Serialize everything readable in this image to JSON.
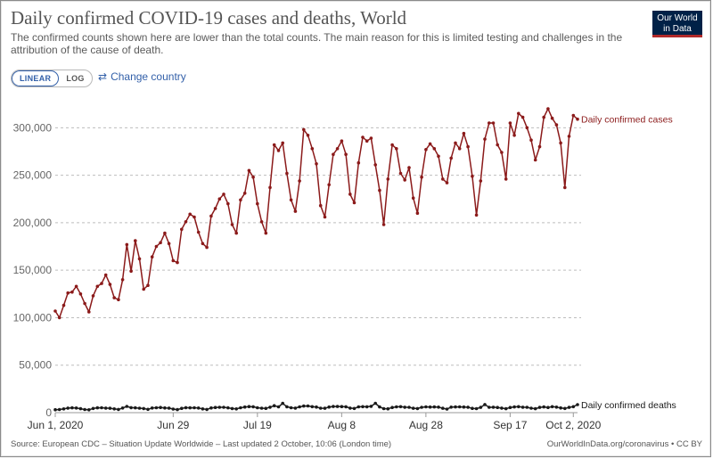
{
  "header": {
    "title": "Daily confirmed COVID-19 cases and deaths, World",
    "subtitle": "The confirmed counts shown here are lower than the total counts. The main reason for this is limited testing and challenges in the attribution of the cause of death.",
    "logo_line1": "Our World",
    "logo_line2": "in Data"
  },
  "controls": {
    "linear_label": "LINEAR",
    "log_label": "LOG",
    "active_scale": "linear",
    "change_country_icon": "swap-arrows-icon",
    "change_country_label": "Change country"
  },
  "footer": {
    "source": "Source: European CDC – Situation Update Worldwide – Last updated 2 October, 10:06 (London time)",
    "credit": "OurWorldInData.org/coronavirus • CC BY"
  },
  "colors": {
    "cases": "#8b1a1a",
    "deaths": "#1a1a1a",
    "grid": "#bdbdbd",
    "logo_bg": "#002147",
    "accent": "#3360a9"
  },
  "chart_data": {
    "type": "line",
    "title": "Daily confirmed COVID-19 cases and deaths, World",
    "x_start_date": "2020-06-01",
    "x_end_date": "2020-10-02",
    "x_tick_labels": [
      "Jun 1, 2020",
      "Jun 29",
      "Jul 19",
      "Aug 8",
      "Aug 28",
      "Sep 17",
      "Oct 2, 2020"
    ],
    "x_tick_days": [
      0,
      28,
      48,
      68,
      88,
      108,
      123
    ],
    "y_ticks": [
      0,
      50000,
      100000,
      150000,
      200000,
      250000,
      300000
    ],
    "y_tick_labels": [
      "0",
      "50,000",
      "100,000",
      "150,000",
      "200,000",
      "250,000",
      "300,000"
    ],
    "ylim": [
      0,
      320000
    ],
    "grid": "horizontal-dashed",
    "legend_placement": "right-end-labels",
    "series": [
      {
        "name": "Daily confirmed cases",
        "color": "#8b1a1a",
        "values": [
          107000,
          100000,
          113000,
          126000,
          127000,
          133000,
          125000,
          115000,
          106000,
          123000,
          133000,
          136000,
          145000,
          135000,
          121000,
          119000,
          140000,
          177000,
          149000,
          181000,
          162000,
          130000,
          134000,
          164000,
          175000,
          179000,
          189000,
          178000,
          160000,
          158000,
          193000,
          201000,
          209000,
          206000,
          190000,
          178000,
          174000,
          207000,
          215000,
          225000,
          230000,
          220000,
          198000,
          189000,
          224000,
          231000,
          255000,
          248000,
          220000,
          201000,
          189000,
          237000,
          282000,
          276000,
          284000,
          252000,
          224000,
          212000,
          244000,
          298000,
          292000,
          278000,
          262000,
          218000,
          206000,
          240000,
          272000,
          278000,
          286000,
          272000,
          230000,
          221000,
          263000,
          290000,
          286000,
          289000,
          261000,
          234000,
          198000,
          246000,
          282000,
          278000,
          252000,
          245000,
          258000,
          226000,
          210000,
          248000,
          277000,
          283000,
          278000,
          270000,
          246000,
          242000,
          268000,
          284000,
          278000,
          294000,
          280000,
          249000,
          208000,
          244000,
          288000,
          305000,
          305000,
          282000,
          274000,
          246000,
          305000,
          292000,
          315000,
          311000,
          300000,
          287000,
          266000,
          280000,
          311000,
          320000,
          310000,
          303000,
          284000,
          237000,
          291000,
          313000,
          309000
        ],
        "end_label": "Daily confirmed cases"
      },
      {
        "name": "Daily confirmed deaths",
        "color": "#1a1a1a",
        "values": [
          3100,
          3300,
          3900,
          4800,
          5100,
          4900,
          4100,
          3300,
          3000,
          4400,
          5100,
          5200,
          4800,
          4600,
          3900,
          3400,
          4900,
          6600,
          5300,
          5100,
          4700,
          4300,
          3500,
          4900,
          5200,
          5400,
          5000,
          4800,
          3800,
          3200,
          4500,
          5300,
          5100,
          5200,
          4900,
          3900,
          3400,
          5000,
          5400,
          5600,
          5600,
          5100,
          4300,
          3900,
          5200,
          5900,
          6400,
          6200,
          5200,
          4700,
          4500,
          5700,
          7300,
          6100,
          9800,
          6200,
          5200,
          4800,
          6100,
          6900,
          7000,
          6300,
          5900,
          4700,
          4600,
          5900,
          6500,
          6500,
          6400,
          6200,
          4800,
          4400,
          6100,
          6300,
          6200,
          6700,
          9900,
          6000,
          4200,
          4000,
          5400,
          6100,
          6300,
          5700,
          5600,
          4600,
          4300,
          5600,
          6100,
          5900,
          6000,
          5800,
          4600,
          3800,
          5800,
          6000,
          6100,
          5900,
          5700,
          4500,
          4200,
          5500,
          8500,
          5600,
          5700,
          5400,
          4800,
          4100,
          5400,
          6000,
          6300,
          5700,
          5600,
          4700,
          4100,
          5500,
          6000,
          5400,
          6300,
          5800,
          5000,
          4400,
          5500,
          6300,
          8400
        ],
        "end_label": "Daily confirmed deaths"
      }
    ]
  }
}
